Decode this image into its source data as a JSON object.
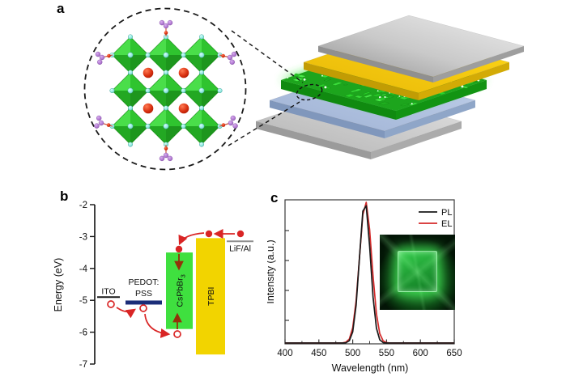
{
  "labels": {
    "a": "a",
    "b": "b",
    "c": "c"
  },
  "panel_a": {
    "stack_layers": [
      {
        "name": "top-electrode",
        "color": "#c9c9c9"
      },
      {
        "name": "tpbi-layer",
        "color": "#f3c90e"
      },
      {
        "name": "perovskite-emitter",
        "color": "#28c828"
      },
      {
        "name": "pedot-pss-layer",
        "color": "#aebfdd"
      },
      {
        "name": "substrate",
        "color": "#cccccc"
      }
    ],
    "crystal": {
      "octahedra_color": "#2ec22e",
      "halide_color": "#8ee6de",
      "cs_color": "#c22008",
      "ligand_color": "#b077d0"
    }
  },
  "panel_b": {
    "y_axis": {
      "label": "Energy (eV)",
      "ticks": [
        "-2",
        "-3",
        "-4",
        "-5",
        "-6",
        "-7"
      ]
    },
    "levels": [
      {
        "id": "ito",
        "label": "ITO",
        "type": "line",
        "energy_ev": -4.9,
        "color": "#1a1a1a"
      },
      {
        "id": "pedot-pss",
        "label": "PEDOT:",
        "label2": "PSS",
        "type": "bar",
        "energy_ev": -5.07,
        "color": "#1b2d78"
      },
      {
        "id": "cspbbr3",
        "label": "CsPbBr",
        "label_sub": "3",
        "type": "box",
        "lumo_ev": -3.5,
        "homo_ev": -5.9,
        "color": "#3fe03f"
      },
      {
        "id": "tpbi",
        "label": "TPBI",
        "type": "box",
        "lumo_ev": -3.05,
        "homo_ev": -6.7,
        "color": "#f2d400"
      },
      {
        "id": "lif-al",
        "label": "LiF/Al",
        "type": "line",
        "energy_ev": -3.15,
        "color": "#8f8f8f",
        "label_below": true
      }
    ],
    "carrier_colors": {
      "electron": "#d92525",
      "hole_stroke": "#d92525",
      "transfer_arrow": "#d92525",
      "internal_arrow": "#93320a"
    }
  },
  "chart_data": {
    "type": "line",
    "title": "",
    "xlabel": "Wavelength (nm)",
    "ylabel": "Intensity (a.u.)",
    "xlim": [
      400,
      650
    ],
    "x_ticks": [
      400,
      450,
      500,
      550,
      600,
      650
    ],
    "x_minor_ticks": [
      425,
      475,
      525,
      575,
      625
    ],
    "grid": false,
    "legend_position": "top-right",
    "x": [
      400,
      405,
      410,
      415,
      420,
      425,
      430,
      435,
      440,
      445,
      450,
      455,
      460,
      465,
      470,
      475,
      480,
      485,
      490,
      495,
      500,
      505,
      510,
      515,
      520,
      525,
      530,
      535,
      540,
      545,
      550,
      555,
      560,
      565,
      570,
      575,
      580,
      585,
      590,
      595,
      600,
      605,
      610,
      615,
      620,
      625,
      630,
      635,
      640,
      645,
      650
    ],
    "series": [
      {
        "name": "PL",
        "color": "#1a1a1a",
        "peak_nm": 518,
        "values": [
          0,
          0,
          0,
          0,
          0,
          0,
          0,
          0,
          0,
          0,
          0,
          0,
          0,
          0,
          0,
          0,
          0,
          0.0002,
          0.002,
          0.016,
          0.079,
          0.267,
          0.607,
          0.932,
          0.969,
          0.682,
          0.325,
          0.105,
          0.023,
          0.003,
          0,
          0,
          0,
          0,
          0,
          0,
          0,
          0,
          0,
          0,
          0,
          0,
          0,
          0,
          0,
          0,
          0,
          0,
          0,
          0,
          0
        ]
      },
      {
        "name": "EL",
        "color": "#d42a2a",
        "peak_nm": 519,
        "values": [
          0,
          0,
          0,
          0,
          0,
          0,
          0,
          0,
          0,
          0,
          0,
          0,
          0,
          0,
          0,
          0,
          0,
          0.001,
          0.006,
          0.028,
          0.108,
          0.298,
          0.607,
          0.906,
          0.994,
          0.8,
          0.474,
          0.206,
          0.066,
          0.015,
          0.003,
          0,
          0,
          0,
          0,
          0,
          0,
          0,
          0,
          0,
          0,
          0,
          0,
          0,
          0,
          0,
          0,
          0,
          0,
          0,
          0
        ]
      }
    ]
  }
}
